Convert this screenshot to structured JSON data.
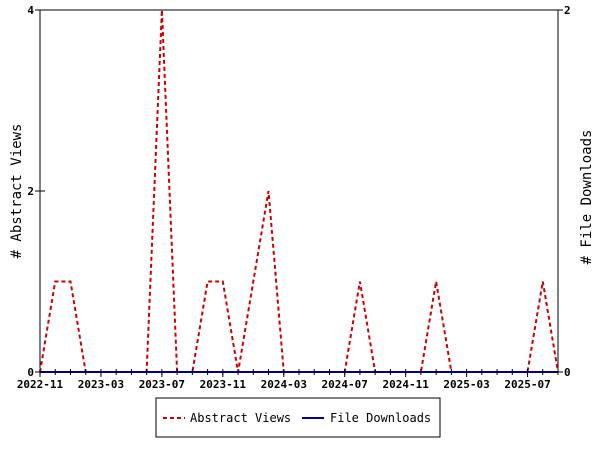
{
  "chart_data": {
    "type": "line",
    "title": "",
    "x_tick_labels": [
      "2022-11",
      "2023-03",
      "2023-07",
      "2023-11",
      "2024-03",
      "2024-07",
      "2024-11",
      "2025-03",
      "2025-07"
    ],
    "x_months": [
      "2022-11",
      "2022-12",
      "2023-01",
      "2023-02",
      "2023-03",
      "2023-04",
      "2023-05",
      "2023-06",
      "2023-07",
      "2023-08",
      "2023-09",
      "2023-10",
      "2023-11",
      "2023-12",
      "2024-01",
      "2024-02",
      "2024-03",
      "2024-04",
      "2024-05",
      "2024-06",
      "2024-07",
      "2024-08",
      "2024-09",
      "2024-10",
      "2024-11",
      "2024-12",
      "2025-01",
      "2025-02",
      "2025-03",
      "2025-04",
      "2025-05",
      "2025-06",
      "2025-07",
      "2025-08",
      "2025-09"
    ],
    "y_left": {
      "label": "# Abstract Views",
      "range": [
        0,
        4
      ],
      "ticks": [
        0,
        2,
        4
      ]
    },
    "y_right": {
      "label": "# File Downloads",
      "range": [
        0,
        2
      ],
      "ticks": [
        0,
        2
      ]
    },
    "series": [
      {
        "name": "Abstract Views",
        "axis": "left",
        "color": "#cc0000",
        "style": "dashed",
        "values": [
          0,
          1,
          1,
          0,
          0,
          0,
          0,
          0,
          4,
          0,
          0,
          1,
          1,
          0,
          1,
          2,
          0,
          0,
          0,
          0,
          0,
          1,
          0,
          0,
          0,
          0,
          1,
          0,
          0,
          0,
          0,
          0,
          0,
          1,
          0
        ]
      },
      {
        "name": "File Downloads",
        "axis": "right",
        "color": "#000099",
        "style": "solid",
        "values": [
          0,
          0,
          0,
          0,
          0,
          0,
          0,
          0,
          0,
          0,
          0,
          0,
          0,
          0,
          0,
          0,
          0,
          0,
          0,
          0,
          0,
          0,
          0,
          0,
          0,
          0,
          0,
          0,
          0,
          0,
          0,
          0,
          0,
          0,
          0
        ]
      }
    ],
    "grid": false,
    "legend_position": "bottom-center"
  }
}
